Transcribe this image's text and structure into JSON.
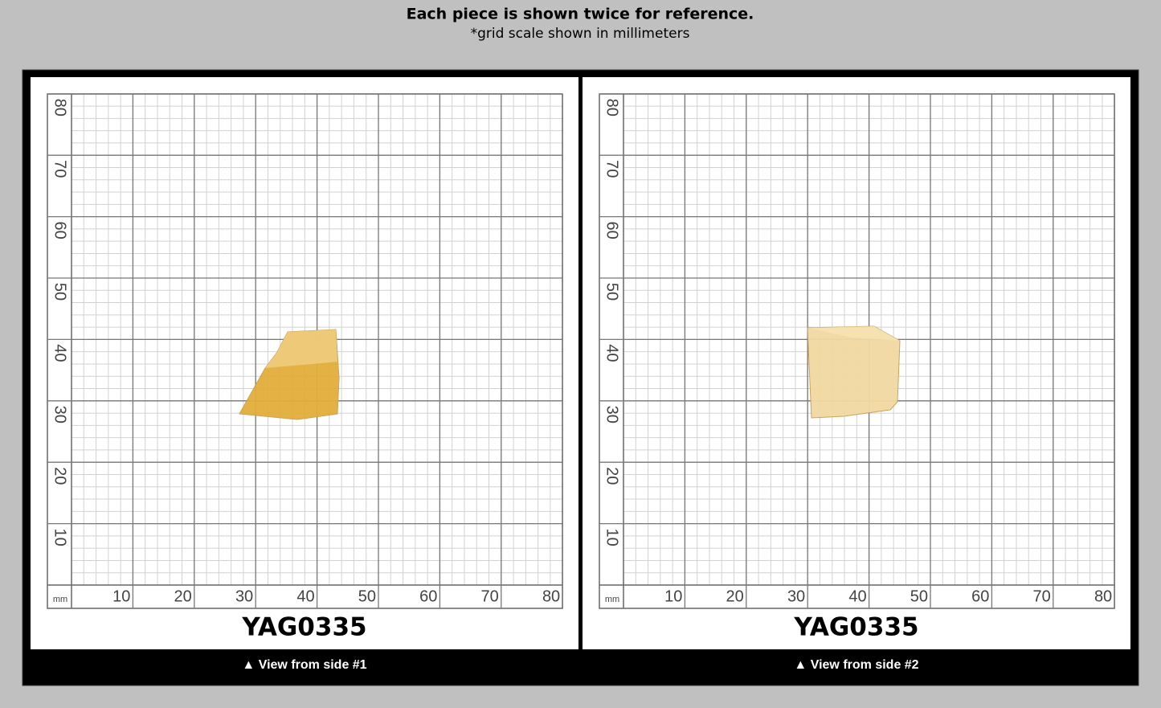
{
  "header": {
    "title": "Each piece is shown twice for reference.",
    "subtitle": "*grid scale shown in millimeters"
  },
  "panels": [
    {
      "label": "YAG0335",
      "caption": "▲ View from side #1",
      "unit": "mm",
      "x_labels": [
        10,
        20,
        30,
        40,
        50,
        60,
        70,
        80
      ],
      "y_labels": [
        10,
        20,
        30,
        40,
        50,
        60,
        70,
        80
      ]
    },
    {
      "label": "YAG0335",
      "caption": "▲ View from side #2",
      "unit": "mm",
      "x_labels": [
        10,
        20,
        30,
        40,
        50,
        60,
        70,
        80
      ],
      "y_labels": [
        10,
        20,
        30,
        40,
        50,
        60,
        70,
        80
      ]
    }
  ]
}
